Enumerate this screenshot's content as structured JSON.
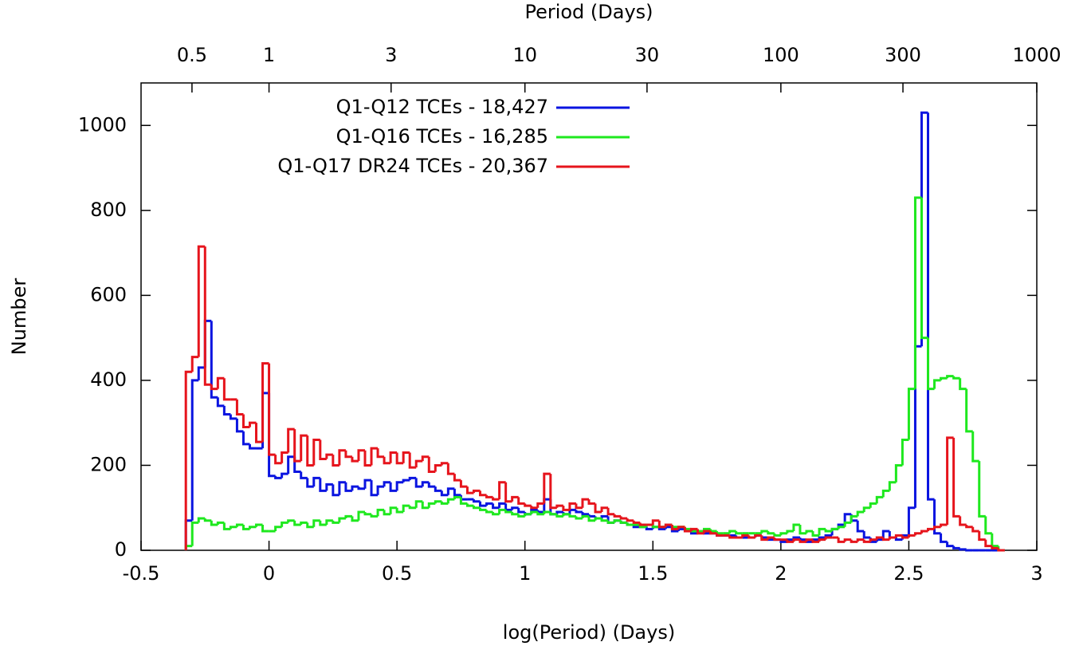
{
  "chart_data": {
    "type": "histogram",
    "xlabel": "log(Period) (Days)",
    "ylabel": "Number",
    "x2label": "Period (Days)",
    "xlim": [
      -0.5,
      3
    ],
    "ylim": [
      0,
      1100
    ],
    "xticks": [
      -0.5,
      0,
      0.5,
      1,
      1.5,
      2,
      2.5,
      3
    ],
    "yticks": [
      0,
      200,
      400,
      600,
      800,
      1000
    ],
    "x2ticks": [
      {
        "value": -0.301,
        "label": "0.5"
      },
      {
        "value": 0,
        "label": "1"
      },
      {
        "value": 0.477,
        "label": "3"
      },
      {
        "value": 1,
        "label": "10"
      },
      {
        "value": 1.477,
        "label": "30"
      },
      {
        "value": 2,
        "label": "100"
      },
      {
        "value": 2.477,
        "label": "300"
      },
      {
        "value": 3,
        "label": "1000"
      }
    ],
    "legend": "top",
    "bins": [
      -0.325,
      -0.3,
      -0.275,
      -0.25,
      -0.225,
      -0.2,
      -0.175,
      -0.15,
      -0.125,
      -0.1,
      -0.075,
      -0.05,
      -0.025,
      0,
      0.025,
      0.05,
      0.075,
      0.1,
      0.125,
      0.15,
      0.175,
      0.2,
      0.225,
      0.25,
      0.275,
      0.3,
      0.325,
      0.35,
      0.375,
      0.4,
      0.425,
      0.45,
      0.475,
      0.5,
      0.525,
      0.55,
      0.575,
      0.6,
      0.625,
      0.65,
      0.675,
      0.7,
      0.725,
      0.75,
      0.775,
      0.8,
      0.825,
      0.85,
      0.875,
      0.9,
      0.925,
      0.95,
      0.975,
      1,
      1.025,
      1.05,
      1.075,
      1.1,
      1.125,
      1.15,
      1.175,
      1.2,
      1.225,
      1.25,
      1.275,
      1.3,
      1.325,
      1.35,
      1.375,
      1.4,
      1.425,
      1.45,
      1.475,
      1.5,
      1.525,
      1.55,
      1.575,
      1.6,
      1.625,
      1.65,
      1.675,
      1.7,
      1.725,
      1.75,
      1.775,
      1.8,
      1.825,
      1.85,
      1.875,
      1.9,
      1.925,
      1.95,
      1.975,
      2,
      2.025,
      2.05,
      2.075,
      2.1,
      2.125,
      2.15,
      2.175,
      2.2,
      2.225,
      2.25,
      2.275,
      2.3,
      2.325,
      2.35,
      2.375,
      2.4,
      2.425,
      2.45,
      2.475,
      2.5,
      2.525,
      2.55,
      2.575,
      2.6,
      2.625,
      2.65,
      2.675,
      2.7,
      2.725,
      2.75,
      2.775,
      2.8,
      2.825,
      2.85,
      2.875
    ],
    "series": [
      {
        "name": "Q1-Q12 TCEs - 18,427",
        "color": "#0a14e0",
        "values": [
          70,
          400,
          430,
          540,
          360,
          340,
          320,
          310,
          280,
          250,
          240,
          240,
          370,
          175,
          170,
          180,
          220,
          185,
          170,
          150,
          170,
          140,
          155,
          130,
          160,
          140,
          150,
          145,
          165,
          130,
          150,
          160,
          140,
          160,
          165,
          170,
          150,
          160,
          150,
          140,
          130,
          145,
          130,
          120,
          120,
          115,
          105,
          110,
          100,
          110,
          95,
          100,
          90,
          85,
          95,
          90,
          120,
          85,
          90,
          85,
          95,
          90,
          85,
          80,
          75,
          80,
          65,
          70,
          65,
          60,
          55,
          55,
          50,
          55,
          50,
          55,
          45,
          50,
          45,
          40,
          45,
          40,
          40,
          35,
          35,
          35,
          30,
          30,
          30,
          35,
          30,
          25,
          25,
          20,
          25,
          30,
          25,
          20,
          25,
          30,
          35,
          50,
          60,
          85,
          70,
          45,
          30,
          20,
          25,
          45,
          30,
          25,
          35,
          100,
          480,
          1030,
          120,
          40,
          20,
          10,
          5,
          2,
          0,
          0,
          0,
          0,
          0,
          0
        ]
      },
      {
        "name": "Q1-Q16 TCEs - 16,285",
        "color": "#1ee81e",
        "values": [
          10,
          65,
          75,
          70,
          60,
          65,
          50,
          55,
          60,
          50,
          55,
          60,
          45,
          45,
          55,
          65,
          70,
          60,
          65,
          55,
          70,
          60,
          70,
          65,
          75,
          80,
          70,
          90,
          85,
          80,
          95,
          85,
          100,
          90,
          105,
          100,
          115,
          100,
          110,
          115,
          110,
          120,
          125,
          110,
          105,
          100,
          95,
          90,
          85,
          95,
          90,
          85,
          80,
          85,
          90,
          85,
          90,
          85,
          80,
          85,
          80,
          75,
          80,
          70,
          75,
          70,
          65,
          70,
          65,
          60,
          60,
          55,
          60,
          55,
          55,
          60,
          55,
          55,
          50,
          45,
          45,
          50,
          45,
          40,
          40,
          45,
          40,
          40,
          40,
          40,
          45,
          40,
          35,
          40,
          45,
          60,
          40,
          45,
          35,
          50,
          45,
          50,
          55,
          65,
          80,
          90,
          100,
          110,
          125,
          140,
          160,
          200,
          260,
          380,
          830,
          500,
          380,
          400,
          405,
          410,
          405,
          380,
          280,
          210,
          80,
          40,
          10,
          0
        ]
      },
      {
        "name": "Q1-Q17 DR24 TCEs - 20,367",
        "color": "#e6141c",
        "values": [
          420,
          455,
          715,
          390,
          380,
          405,
          355,
          355,
          320,
          290,
          300,
          255,
          440,
          225,
          205,
          230,
          285,
          210,
          270,
          200,
          260,
          215,
          225,
          200,
          235,
          220,
          210,
          235,
          200,
          240,
          220,
          205,
          230,
          205,
          230,
          195,
          210,
          220,
          185,
          200,
          205,
          180,
          165,
          150,
          135,
          140,
          130,
          125,
          120,
          160,
          115,
          125,
          110,
          105,
          100,
          110,
          180,
          100,
          105,
          95,
          110,
          100,
          120,
          110,
          90,
          100,
          85,
          80,
          75,
          70,
          65,
          60,
          60,
          70,
          55,
          60,
          50,
          55,
          45,
          50,
          40,
          45,
          40,
          35,
          35,
          30,
          30,
          35,
          30,
          35,
          25,
          30,
          25,
          25,
          20,
          25,
          20,
          25,
          20,
          25,
          30,
          30,
          20,
          25,
          20,
          25,
          20,
          25,
          30,
          25,
          30,
          35,
          30,
          35,
          40,
          45,
          50,
          55,
          60,
          265,
          80,
          60,
          55,
          45,
          25,
          10,
          5,
          0
        ]
      }
    ]
  }
}
